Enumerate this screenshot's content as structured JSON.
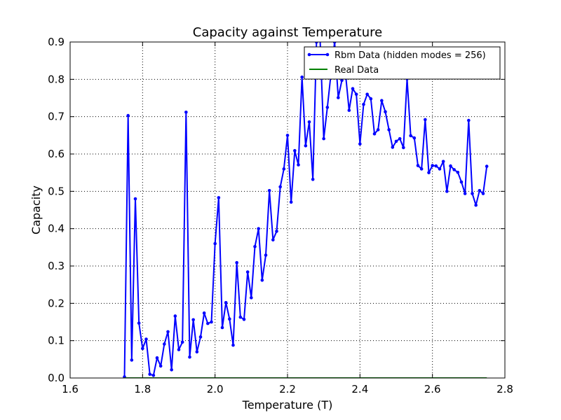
{
  "chart_data": {
    "type": "line",
    "title": "Capacity against Temperature",
    "xlabel": "Temperature (T)",
    "ylabel": "Capacity",
    "xlim": [
      1.6,
      2.8
    ],
    "ylim": [
      0.0,
      0.9
    ],
    "xticks": [
      "1.6",
      "1.8",
      "2.0",
      "2.2",
      "2.4",
      "2.6",
      "2.8"
    ],
    "yticks": [
      "0.0",
      "0.1",
      "0.2",
      "0.3",
      "0.4",
      "0.5",
      "0.6",
      "0.7",
      "0.8",
      "0.9"
    ],
    "grid": true,
    "legend": "top-right",
    "series": [
      {
        "name": "Rbm Data (hidden modes = 256)",
        "color": "#0000ff",
        "marker": "dot",
        "x": [
          1.75,
          1.76,
          1.77,
          1.78,
          1.79,
          1.8,
          1.81,
          1.82,
          1.83,
          1.84,
          1.85,
          1.86,
          1.87,
          1.88,
          1.89,
          1.9,
          1.91,
          1.92,
          1.93,
          1.94,
          1.95,
          1.96,
          1.97,
          1.98,
          1.99,
          2.0,
          2.01,
          2.02,
          2.03,
          2.04,
          2.05,
          2.06,
          2.07,
          2.08,
          2.09,
          2.1,
          2.11,
          2.12,
          2.13,
          2.14,
          2.15,
          2.16,
          2.17,
          2.18,
          2.19,
          2.2,
          2.21,
          2.22,
          2.23,
          2.24,
          2.25,
          2.26,
          2.27,
          2.28,
          2.29,
          2.3,
          2.31,
          2.32,
          2.33,
          2.34,
          2.35,
          2.36,
          2.37,
          2.38,
          2.39,
          2.4,
          2.41,
          2.42,
          2.43,
          2.44,
          2.45,
          2.46,
          2.47,
          2.48,
          2.49,
          2.5,
          2.51,
          2.52,
          2.53,
          2.54,
          2.55,
          2.56,
          2.57,
          2.58,
          2.59,
          2.6,
          2.61,
          2.62,
          2.63,
          2.64,
          2.65,
          2.66,
          2.67,
          2.68,
          2.69,
          2.7,
          2.71,
          2.72,
          2.73,
          2.74,
          2.75
        ],
        "y": [
          0.003,
          0.703,
          0.048,
          0.48,
          0.147,
          0.079,
          0.104,
          0.01,
          0.007,
          0.054,
          0.032,
          0.091,
          0.124,
          0.022,
          0.166,
          0.076,
          0.096,
          0.712,
          0.056,
          0.156,
          0.07,
          0.11,
          0.174,
          0.146,
          0.15,
          0.36,
          0.483,
          0.135,
          0.202,
          0.158,
          0.088,
          0.309,
          0.163,
          0.157,
          0.284,
          0.215,
          0.352,
          0.4,
          0.262,
          0.329,
          0.502,
          0.37,
          0.393,
          0.512,
          0.56,
          0.65,
          0.471,
          0.609,
          0.571,
          0.806,
          0.622,
          0.686,
          0.532,
          0.9,
          0.905,
          0.641,
          0.725,
          0.815,
          0.9,
          0.751,
          0.797,
          0.816,
          0.717,
          0.775,
          0.76,
          0.627,
          0.733,
          0.76,
          0.748,
          0.654,
          0.665,
          0.743,
          0.713,
          0.665,
          0.618,
          0.634,
          0.641,
          0.617,
          0.801,
          0.649,
          0.643,
          0.569,
          0.56,
          0.692,
          0.55,
          0.569,
          0.568,
          0.56,
          0.58,
          0.5,
          0.568,
          0.558,
          0.551,
          0.525,
          0.494,
          0.69,
          0.494,
          0.463,
          0.502,
          0.494,
          0.567
        ]
      },
      {
        "name": "Real Data",
        "color": "#008000",
        "x": [
          1.75,
          2.75
        ],
        "y": [
          0.0,
          0.0
        ]
      }
    ]
  }
}
